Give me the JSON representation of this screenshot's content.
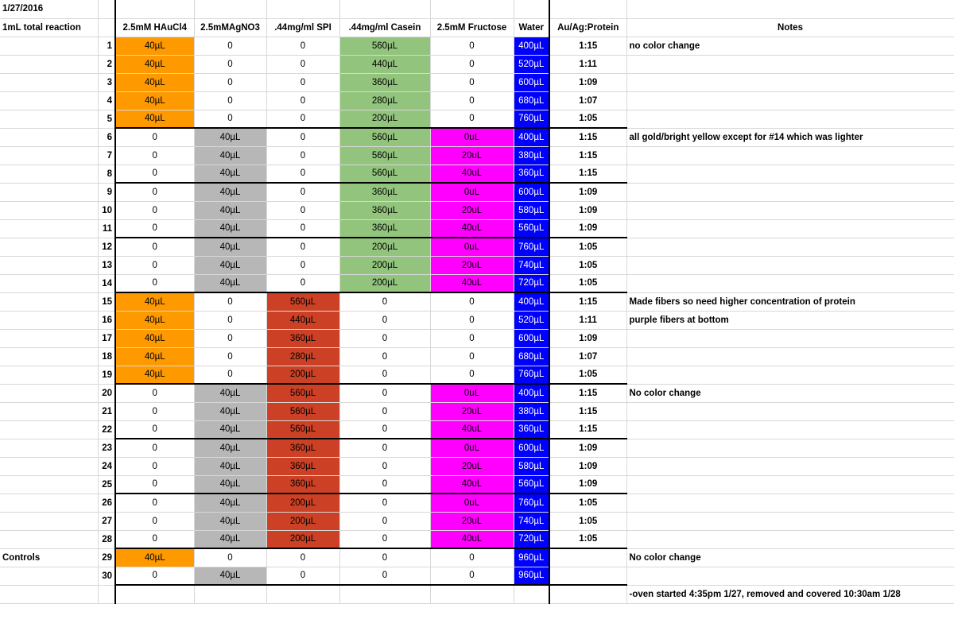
{
  "date": "1/27/2016",
  "row_label_header": "1mL total reaction",
  "columns": [
    "2.5mM HAuCl4",
    "2.5mMAgNO3",
    ".44mg/ml SPI",
    ".44mg/ml Casein",
    "2.5mM Fructose",
    "Water",
    "Au/Ag:Protein",
    "Notes"
  ],
  "colors": {
    "gold": "#ff9900",
    "silver": "#b7b7b7",
    "casein": "#93c47d",
    "spi": "#cc4125",
    "fructose": "#ff00ff",
    "water": "#0000ff"
  },
  "rows": [
    {
      "label": "",
      "n": "1",
      "au": "40µL",
      "ag": "0",
      "spi": "0",
      "cas": "560µL",
      "fru": "0",
      "water": "400µL",
      "ratio": "1:15",
      "note": "no color change",
      "au_c": "orange",
      "ag_c": "white",
      "spi_c": "white",
      "cas_c": "green",
      "fru_c": "white",
      "top": false
    },
    {
      "label": "",
      "n": "2",
      "au": "40µL",
      "ag": "0",
      "spi": "0",
      "cas": "440µL",
      "fru": "0",
      "water": "520µL",
      "ratio": "1:11",
      "note": "",
      "au_c": "orange",
      "ag_c": "white",
      "spi_c": "white",
      "cas_c": "green",
      "fru_c": "white",
      "top": false
    },
    {
      "label": "",
      "n": "3",
      "au": "40µL",
      "ag": "0",
      "spi": "0",
      "cas": "360µL",
      "fru": "0",
      "water": "600µL",
      "ratio": "1:09",
      "note": "",
      "au_c": "orange",
      "ag_c": "white",
      "spi_c": "white",
      "cas_c": "green",
      "fru_c": "white",
      "top": false
    },
    {
      "label": "",
      "n": "4",
      "au": "40µL",
      "ag": "0",
      "spi": "0",
      "cas": "280µL",
      "fru": "0",
      "water": "680µL",
      "ratio": "1:07",
      "note": "",
      "au_c": "orange",
      "ag_c": "white",
      "spi_c": "white",
      "cas_c": "green",
      "fru_c": "white",
      "top": false
    },
    {
      "label": "",
      "n": "5",
      "au": "40µL",
      "ag": "0",
      "spi": "0",
      "cas": "200µL",
      "fru": "0",
      "water": "760µL",
      "ratio": "1:05",
      "note": "",
      "au_c": "orange",
      "ag_c": "white",
      "spi_c": "white",
      "cas_c": "green",
      "fru_c": "white",
      "top": false
    },
    {
      "label": "",
      "n": "6",
      "au": "0",
      "ag": "40µL",
      "spi": "0",
      "cas": "560µL",
      "fru": "0uL",
      "water": "400µL",
      "ratio": "1:15",
      "note": "all gold/bright yellow except for #14 which was lighter",
      "au_c": "white",
      "ag_c": "gray",
      "spi_c": "white",
      "cas_c": "green",
      "fru_c": "magenta",
      "top": true
    },
    {
      "label": "",
      "n": "7",
      "au": "0",
      "ag": "40µL",
      "spi": "0",
      "cas": "560µL",
      "fru": "20uL",
      "water": "380µL",
      "ratio": "1:15",
      "note": "",
      "au_c": "white",
      "ag_c": "gray",
      "spi_c": "white",
      "cas_c": "green",
      "fru_c": "magenta",
      "top": false
    },
    {
      "label": "",
      "n": "8",
      "au": "0",
      "ag": "40µL",
      "spi": "0",
      "cas": "560µL",
      "fru": "40uL",
      "water": "360µL",
      "ratio": "1:15",
      "note": "",
      "au_c": "white",
      "ag_c": "gray",
      "spi_c": "white",
      "cas_c": "green",
      "fru_c": "magenta",
      "top": false
    },
    {
      "label": "",
      "n": "9",
      "au": "0",
      "ag": "40µL",
      "spi": "0",
      "cas": "360µL",
      "fru": "0uL",
      "water": "600µL",
      "ratio": "1:09",
      "note": "",
      "au_c": "white",
      "ag_c": "gray",
      "spi_c": "white",
      "cas_c": "green",
      "fru_c": "magenta",
      "top": true
    },
    {
      "label": "",
      "n": "10",
      "au": "0",
      "ag": "40µL",
      "spi": "0",
      "cas": "360µL",
      "fru": "20uL",
      "water": "580µL",
      "ratio": "1:09",
      "note": "",
      "au_c": "white",
      "ag_c": "gray",
      "spi_c": "white",
      "cas_c": "green",
      "fru_c": "magenta",
      "top": false
    },
    {
      "label": "",
      "n": "11",
      "au": "0",
      "ag": "40µL",
      "spi": "0",
      "cas": "360µL",
      "fru": "40uL",
      "water": "560µL",
      "ratio": "1:09",
      "note": "",
      "au_c": "white",
      "ag_c": "gray",
      "spi_c": "white",
      "cas_c": "green",
      "fru_c": "magenta",
      "top": false
    },
    {
      "label": "",
      "n": "12",
      "au": "0",
      "ag": "40µL",
      "spi": "0",
      "cas": "200µL",
      "fru": "0uL",
      "water": "760µL",
      "ratio": "1:05",
      "note": "",
      "au_c": "white",
      "ag_c": "gray",
      "spi_c": "white",
      "cas_c": "green",
      "fru_c": "magenta",
      "top": true
    },
    {
      "label": "",
      "n": "13",
      "au": "0",
      "ag": "40µL",
      "spi": "0",
      "cas": "200µL",
      "fru": "20uL",
      "water": "740µL",
      "ratio": "1:05",
      "note": "",
      "au_c": "white",
      "ag_c": "gray",
      "spi_c": "white",
      "cas_c": "green",
      "fru_c": "magenta",
      "top": false
    },
    {
      "label": "",
      "n": "14",
      "au": "0",
      "ag": "40µL",
      "spi": "0",
      "cas": "200µL",
      "fru": "40uL",
      "water": "720µL",
      "ratio": "1:05",
      "note": "",
      "au_c": "white",
      "ag_c": "gray",
      "spi_c": "white",
      "cas_c": "green",
      "fru_c": "magenta",
      "top": false
    },
    {
      "label": "",
      "n": "15",
      "au": "40µL",
      "ag": "0",
      "spi": "560µL",
      "cas": "0",
      "fru": "0",
      "water": "400µL",
      "ratio": "1:15",
      "note": "Made fibers so need higher concentration of protein",
      "au_c": "orange",
      "ag_c": "white",
      "spi_c": "red",
      "cas_c": "white",
      "fru_c": "white",
      "top": true
    },
    {
      "label": "",
      "n": "16",
      "au": "40µL",
      "ag": "0",
      "spi": "440µL",
      "cas": "0",
      "fru": "0",
      "water": "520µL",
      "ratio": "1:11",
      "note": "purple fibers at bottom",
      "au_c": "orange",
      "ag_c": "white",
      "spi_c": "red",
      "cas_c": "white",
      "fru_c": "white",
      "top": false
    },
    {
      "label": "",
      "n": "17",
      "au": "40µL",
      "ag": "0",
      "spi": "360µL",
      "cas": "0",
      "fru": "0",
      "water": "600µL",
      "ratio": "1:09",
      "note": "",
      "au_c": "orange",
      "ag_c": "white",
      "spi_c": "red",
      "cas_c": "white",
      "fru_c": "white",
      "top": false
    },
    {
      "label": "",
      "n": "18",
      "au": "40µL",
      "ag": "0",
      "spi": "280µL",
      "cas": "0",
      "fru": "0",
      "water": "680µL",
      "ratio": "1:07",
      "note": "",
      "au_c": "orange",
      "ag_c": "white",
      "spi_c": "red",
      "cas_c": "white",
      "fru_c": "white",
      "top": false
    },
    {
      "label": "",
      "n": "19",
      "au": "40µL",
      "ag": "0",
      "spi": "200µL",
      "cas": "0",
      "fru": "0",
      "water": "760µL",
      "ratio": "1:05",
      "note": "",
      "au_c": "orange",
      "ag_c": "white",
      "spi_c": "red",
      "cas_c": "white",
      "fru_c": "white",
      "top": false
    },
    {
      "label": "",
      "n": "20",
      "au": "0",
      "ag": "40µL",
      "spi": "560µL",
      "cas": "0",
      "fru": "0uL",
      "water": "400µL",
      "ratio": "1:15",
      "note": "No color change",
      "au_c": "white",
      "ag_c": "gray",
      "spi_c": "red",
      "cas_c": "white",
      "fru_c": "magenta",
      "top": true
    },
    {
      "label": "",
      "n": "21",
      "au": "0",
      "ag": "40µL",
      "spi": "560µL",
      "cas": "0",
      "fru": "20uL",
      "water": "380µL",
      "ratio": "1:15",
      "note": "",
      "au_c": "white",
      "ag_c": "gray",
      "spi_c": "red",
      "cas_c": "white",
      "fru_c": "magenta",
      "top": false
    },
    {
      "label": "",
      "n": "22",
      "au": "0",
      "ag": "40µL",
      "spi": "560µL",
      "cas": "0",
      "fru": "40uL",
      "water": "360µL",
      "ratio": "1:15",
      "note": "",
      "au_c": "white",
      "ag_c": "gray",
      "spi_c": "red",
      "cas_c": "white",
      "fru_c": "magenta",
      "top": false
    },
    {
      "label": "",
      "n": "23",
      "au": "0",
      "ag": "40µL",
      "spi": "360µL",
      "cas": "0",
      "fru": "0uL",
      "water": "600µL",
      "ratio": "1:09",
      "note": "",
      "au_c": "white",
      "ag_c": "gray",
      "spi_c": "red",
      "cas_c": "white",
      "fru_c": "magenta",
      "top": true
    },
    {
      "label": "",
      "n": "24",
      "au": "0",
      "ag": "40µL",
      "spi": "360µL",
      "cas": "0",
      "fru": "20uL",
      "water": "580µL",
      "ratio": "1:09",
      "note": "",
      "au_c": "white",
      "ag_c": "gray",
      "spi_c": "red",
      "cas_c": "white",
      "fru_c": "magenta",
      "top": false
    },
    {
      "label": "",
      "n": "25",
      "au": "0",
      "ag": "40µL",
      "spi": "360µL",
      "cas": "0",
      "fru": "40uL",
      "water": "560µL",
      "ratio": "1:09",
      "note": "",
      "au_c": "white",
      "ag_c": "gray",
      "spi_c": "red",
      "cas_c": "white",
      "fru_c": "magenta",
      "top": false
    },
    {
      "label": "",
      "n": "26",
      "au": "0",
      "ag": "40µL",
      "spi": "200µL",
      "cas": "0",
      "fru": "0uL",
      "water": "760µL",
      "ratio": "1:05",
      "note": "",
      "au_c": "white",
      "ag_c": "gray",
      "spi_c": "red",
      "cas_c": "white",
      "fru_c": "magenta",
      "top": true
    },
    {
      "label": "",
      "n": "27",
      "au": "0",
      "ag": "40µL",
      "spi": "200µL",
      "cas": "0",
      "fru": "20uL",
      "water": "740µL",
      "ratio": "1:05",
      "note": "",
      "au_c": "white",
      "ag_c": "gray",
      "spi_c": "red",
      "cas_c": "white",
      "fru_c": "magenta",
      "top": false
    },
    {
      "label": "",
      "n": "28",
      "au": "0",
      "ag": "40µL",
      "spi": "200µL",
      "cas": "0",
      "fru": "40uL",
      "water": "720µL",
      "ratio": "1:05",
      "note": "",
      "au_c": "white",
      "ag_c": "gray",
      "spi_c": "red",
      "cas_c": "white",
      "fru_c": "magenta",
      "top": false
    },
    {
      "label": "Controls",
      "n": "29",
      "au": "40µL",
      "ag": "0",
      "spi": "0",
      "cas": "0",
      "fru": "0",
      "water": "960µL",
      "ratio": "",
      "note": "No color change",
      "au_c": "orange",
      "ag_c": "white",
      "spi_c": "white",
      "cas_c": "white",
      "fru_c": "white",
      "top": true
    },
    {
      "label": "",
      "n": "30",
      "au": "0",
      "ag": "40µL",
      "spi": "0",
      "cas": "0",
      "fru": "0",
      "water": "960µL",
      "ratio": "",
      "note": "",
      "au_c": "white",
      "ag_c": "gray",
      "spi_c": "white",
      "cas_c": "white",
      "fru_c": "white",
      "top": false
    }
  ],
  "footer_note": "-oven started 4:35pm 1/27, removed and covered 10:30am 1/28"
}
